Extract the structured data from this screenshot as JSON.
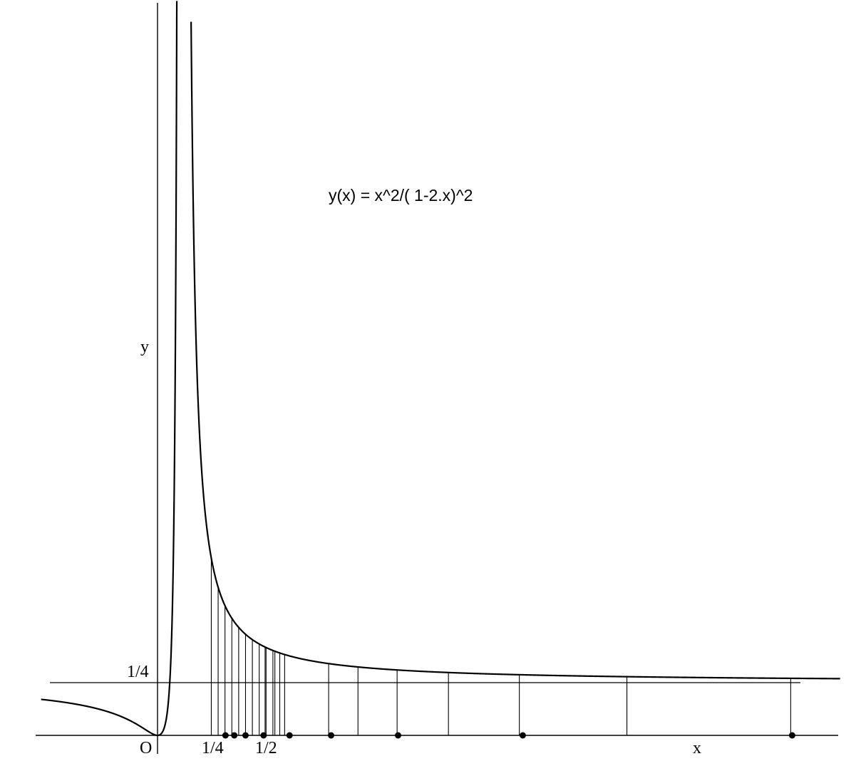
{
  "chart_data": {
    "type": "line",
    "title": "",
    "function": "x^2/(1-2x)^2",
    "annotation": "y(x) = x^2/( 1-2.x)^2",
    "xlabel": "x",
    "ylabel": "y",
    "origin_label": "O",
    "x_tick_labels": [
      "1/4",
      "1/2"
    ],
    "y_tick_labels": [
      "1/4"
    ],
    "horizontal_reference_line": 0.25,
    "vertical_asymptote": 0.5,
    "xlim": [
      -2.38,
      14.0
    ],
    "ylim": [
      0,
      3.45
    ],
    "sample_points_x": [
      1.0,
      1.333,
      1.5,
      1.667,
      2.0,
      2.5,
      3.0,
      4.0,
      5.5,
      8.0,
      10.33
    ],
    "colors": {
      "curve": "#000000",
      "axes": "#000000",
      "background": "#ffffff"
    },
    "grid": false
  }
}
